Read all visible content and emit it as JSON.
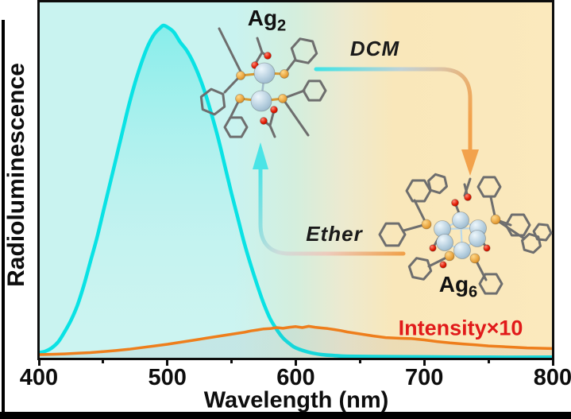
{
  "figure": {
    "y_axis_label": "Radioluminescence",
    "x_axis_label": "Wavelength (nm)",
    "labels": {
      "ag2": {
        "text": "Ag",
        "sub": "2"
      },
      "ag6": {
        "text": "Ag",
        "sub": "6"
      },
      "dcm": "DCM",
      "ether": "Ether",
      "intensity": "Intensity×10"
    },
    "colors": {
      "ag2_curve": "#0ae2e4",
      "ag6_curve": "#ee7e1c",
      "intensity_label_red": "#e11a1a",
      "background_left": "#c9f3f0",
      "background_right": "#fbe9bd",
      "ag_atom": "#b6cfdf",
      "p_atom": "#e8a23c",
      "o_atom": "#e01800",
      "carbon_stick": "#6e6e6e",
      "frame": "#0d0d0d"
    }
  },
  "chart_data": {
    "type": "line",
    "title": "",
    "xlabel": "Wavelength (nm)",
    "ylabel": "Radioluminescence",
    "xlim": [
      400,
      800
    ],
    "ylim": [
      0,
      1.07
    ],
    "grid": false,
    "legend_position": "none",
    "x_ticks": [
      400,
      500,
      600,
      700,
      800
    ],
    "x_minor_ticks": [
      450,
      550,
      650,
      750
    ],
    "annotations": [
      "Ag2",
      "Ag6",
      "DCM",
      "Ether",
      "Intensity×10"
    ],
    "series": [
      {
        "name": "Ag2 radioluminescence",
        "color": "#0ae2e4",
        "peak_nm": 497,
        "x": [
          400,
          405,
          410,
          415,
          420,
          425,
          430,
          435,
          440,
          445,
          450,
          455,
          460,
          465,
          470,
          475,
          480,
          485,
          490,
          495,
          497,
          500,
          505,
          510,
          515,
          520,
          525,
          530,
          535,
          540,
          545,
          550,
          555,
          560,
          565,
          570,
          575,
          580,
          585,
          590,
          595,
          600,
          610,
          620,
          630,
          640,
          660,
          700,
          750,
          800
        ],
        "y": [
          0.018,
          0.022,
          0.032,
          0.05,
          0.08,
          0.115,
          0.16,
          0.22,
          0.29,
          0.36,
          0.44,
          0.52,
          0.6,
          0.68,
          0.76,
          0.83,
          0.89,
          0.94,
          0.975,
          0.995,
          1.0,
          0.995,
          0.98,
          0.95,
          0.925,
          0.89,
          0.845,
          0.79,
          0.725,
          0.655,
          0.575,
          0.495,
          0.42,
          0.345,
          0.28,
          0.22,
          0.165,
          0.12,
          0.088,
          0.062,
          0.045,
          0.032,
          0.019,
          0.012,
          0.009,
          0.007,
          0.006,
          0.005,
          0.004,
          0.004
        ]
      },
      {
        "name": "Ag6 radioluminescence (shown ×10)",
        "color": "#ee7e1c",
        "peak_nm": 610,
        "scale_note": "Intensity×10",
        "x": [
          400,
          410,
          420,
          430,
          440,
          450,
          460,
          470,
          480,
          490,
          500,
          510,
          520,
          530,
          540,
          550,
          560,
          565,
          570,
          575,
          580,
          585,
          590,
          595,
          600,
          605,
          610,
          615,
          620,
          625,
          630,
          635,
          640,
          650,
          660,
          670,
          680,
          690,
          700,
          710,
          720,
          730,
          740,
          750,
          760,
          770,
          780,
          790,
          800
        ],
        "y": [
          0.012,
          0.013,
          0.014,
          0.016,
          0.018,
          0.021,
          0.024,
          0.028,
          0.033,
          0.038,
          0.043,
          0.049,
          0.055,
          0.061,
          0.067,
          0.073,
          0.079,
          0.083,
          0.086,
          0.089,
          0.09,
          0.093,
          0.091,
          0.094,
          0.096,
          0.093,
          0.097,
          0.094,
          0.092,
          0.09,
          0.087,
          0.084,
          0.08,
          0.074,
          0.068,
          0.063,
          0.061,
          0.06,
          0.056,
          0.051,
          0.047,
          0.044,
          0.041,
          0.038,
          0.036,
          0.034,
          0.032,
          0.031,
          0.03
        ]
      }
    ]
  }
}
